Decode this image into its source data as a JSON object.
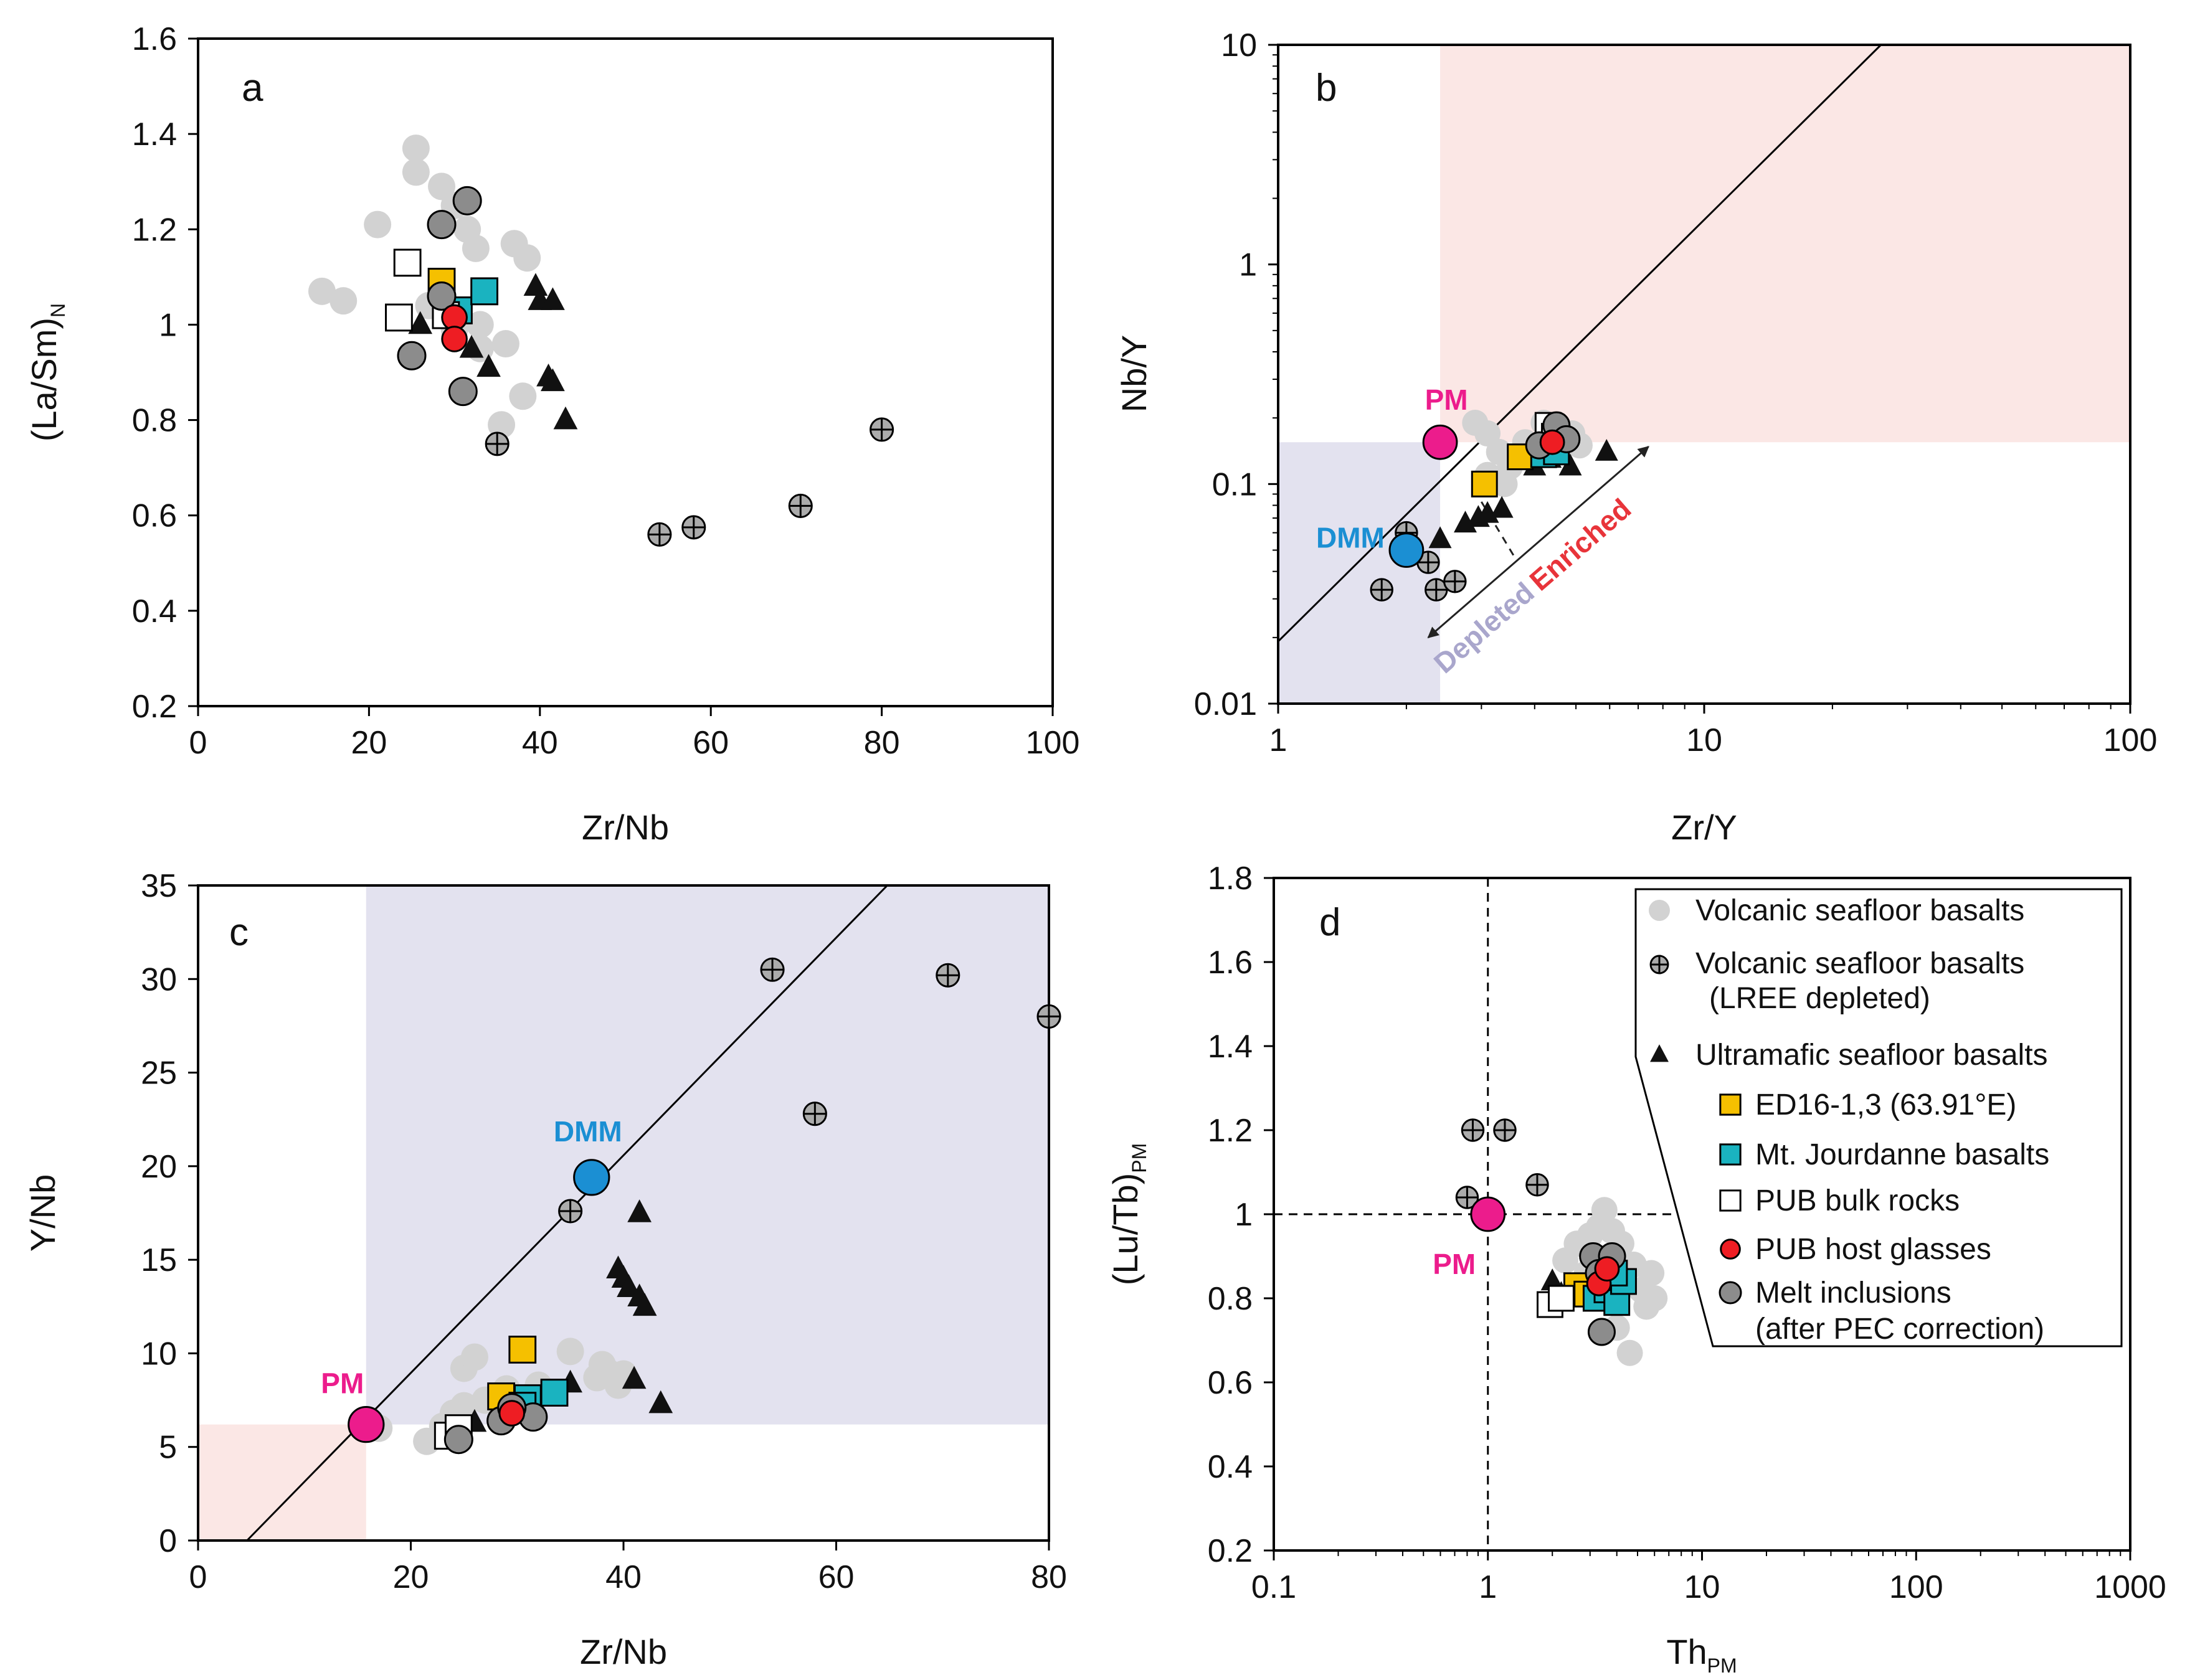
{
  "colors": {
    "gray": "#d2d2d2",
    "ed16": "#f5c000",
    "jourdanne": "#1ab3c0",
    "pub_bulk": "#ffffff",
    "host": "#ee1d23",
    "melt": "#8c8c8c",
    "pm": "#ec1c8c",
    "dmm": "#1b8fd3",
    "pink_region": "#fbe7e5",
    "blue_region": "#e3e2ef",
    "depleted": "#a9a6cc",
    "enriched": "#e8343a"
  },
  "legend": {
    "items": [
      {
        "key": "gray",
        "label": "Volcanic seafloor basalts"
      },
      {
        "key": "lree",
        "label": "Volcanic seafloor basalts",
        "label2": "(LREE depleted)"
      },
      {
        "key": "ultra",
        "label": "Ultramafic seafloor basalts"
      },
      {
        "key": "ed16",
        "label": "ED16-1,3 (63.91°E)"
      },
      {
        "key": "jourdanne",
        "label": "Mt. Jourdanne basalts"
      },
      {
        "key": "pub",
        "label": "PUB bulk rocks"
      },
      {
        "key": "host",
        "label": "PUB host glasses"
      },
      {
        "key": "melt",
        "label": "Melt inclusions",
        "label2": "(after PEC correction)"
      }
    ]
  },
  "chart_data": [
    {
      "panel": "a",
      "type": "scatter",
      "xscale": "linear",
      "yscale": "linear",
      "xlabel": "Zr/Nb",
      "ylabel": "(La/Sm)",
      "ylabel_sub": "N",
      "xlim": [
        0,
        100
      ],
      "ylim": [
        0.2,
        1.6
      ],
      "xticks": [
        0,
        20,
        40,
        60,
        80,
        100
      ],
      "xtick_labels": [
        "0",
        "20",
        "40",
        "60",
        "80",
        "100"
      ],
      "yticks": [
        0.2,
        0.4,
        0.6,
        0.8,
        1,
        1.2,
        1.4,
        1.6
      ],
      "ytick_labels": [
        "0.2",
        "0.4",
        "0.6",
        "0.8",
        "1",
        "1.2",
        "1.4",
        "1.6"
      ],
      "series": [
        {
          "key": "gray",
          "points": [
            [
              14.5,
              1.07
            ],
            [
              17,
              1.05
            ],
            [
              21,
              1.21
            ],
            [
              25.5,
              1.37
            ],
            [
              25.5,
              1.32
            ],
            [
              28.5,
              1.29
            ],
            [
              30,
              1.25
            ],
            [
              31.5,
              1.2
            ],
            [
              32.5,
              1.16
            ],
            [
              27,
              1.04
            ],
            [
              30,
              0.99
            ],
            [
              33,
              1.0
            ],
            [
              33,
              0.95
            ],
            [
              36,
              0.96
            ],
            [
              38.5,
              1.14
            ],
            [
              37,
              1.17
            ],
            [
              35.5,
              0.79
            ],
            [
              38,
              0.85
            ]
          ]
        },
        {
          "key": "lree",
          "points": [
            [
              35,
              0.75
            ],
            [
              54,
              0.56
            ],
            [
              58,
              0.575
            ],
            [
              70.5,
              0.62
            ],
            [
              80,
              0.78
            ]
          ]
        },
        {
          "key": "ultra",
          "points": [
            [
              26,
              1.0
            ],
            [
              32,
              0.95
            ],
            [
              34,
              0.91
            ],
            [
              39.5,
              1.08
            ],
            [
              40,
              1.05
            ],
            [
              41.5,
              1.05
            ],
            [
              41,
              0.89
            ],
            [
              41.5,
              0.88
            ],
            [
              43,
              0.8
            ]
          ]
        },
        {
          "key": "ed16",
          "points": [
            [
              28.5,
              1.09
            ]
          ]
        },
        {
          "key": "jourdanne",
          "points": [
            [
              30.5,
              1.03
            ],
            [
              33.5,
              1.07
            ]
          ]
        },
        {
          "key": "pub",
          "points": [
            [
              23.5,
              1.015
            ],
            [
              24.5,
              1.13
            ],
            [
              29,
              1.02
            ]
          ]
        },
        {
          "key": "melt",
          "points": [
            [
              28.5,
              1.21
            ],
            [
              31.5,
              1.26
            ],
            [
              28.5,
              1.06
            ],
            [
              31,
              0.86
            ],
            [
              25,
              0.935
            ]
          ]
        },
        {
          "key": "host",
          "points": [
            [
              30,
              1.015
            ],
            [
              30,
              0.97
            ]
          ]
        }
      ]
    },
    {
      "panel": "b",
      "type": "scatter",
      "xscale": "log",
      "yscale": "log",
      "xlabel": "Zr/Y",
      "ylabel": "Nb/Y",
      "xlim": [
        1,
        100
      ],
      "ylim": [
        0.01,
        10
      ],
      "xticks": [
        1,
        10,
        100
      ],
      "xtick_labels": [
        "1",
        "10",
        "100"
      ],
      "yticks": [
        0.01,
        0.1,
        1,
        10
      ],
      "ytick_labels": [
        "0.01",
        "0.1",
        "1",
        "10"
      ],
      "series": [
        {
          "key": "gray",
          "points": [
            [
              2.9,
              0.19
            ],
            [
              3.1,
              0.17
            ],
            [
              3.3,
              0.14
            ],
            [
              3.5,
              0.12
            ],
            [
              3.1,
              0.11
            ],
            [
              3.4,
              0.1
            ],
            [
              4.2,
              0.19
            ],
            [
              4.5,
              0.18
            ],
            [
              4.9,
              0.17
            ],
            [
              5.1,
              0.15
            ],
            [
              3.8,
              0.155
            ]
          ]
        },
        {
          "key": "lree",
          "points": [
            [
              1.75,
              0.033
            ],
            [
              2.0,
              0.06
            ],
            [
              2.25,
              0.044
            ],
            [
              2.35,
              0.033
            ],
            [
              2.6,
              0.036
            ]
          ]
        },
        {
          "key": "ultra",
          "points": [
            [
              2.4,
              0.056
            ],
            [
              2.75,
              0.066
            ],
            [
              2.95,
              0.07
            ],
            [
              3.1,
              0.073
            ],
            [
              3.35,
              0.077
            ],
            [
              4.0,
              0.12
            ],
            [
              4.35,
              0.13
            ],
            [
              4.85,
              0.12
            ],
            [
              5.9,
              0.14
            ]
          ]
        },
        {
          "key": "ed16",
          "points": [
            [
              3.7,
              0.133
            ],
            [
              3.05,
              0.1
            ]
          ]
        },
        {
          "key": "jourdanne",
          "points": [
            [
              4.2,
              0.136
            ],
            [
              4.5,
              0.14
            ]
          ]
        },
        {
          "key": "pub",
          "points": [
            [
              4.3,
              0.185
            ],
            [
              4.45,
              0.165
            ]
          ]
        },
        {
          "key": "melt",
          "points": [
            [
              4.5,
              0.185
            ],
            [
              4.75,
              0.16
            ],
            [
              4.1,
              0.15
            ]
          ]
        },
        {
          "key": "host",
          "points": [
            [
              4.4,
              0.155
            ]
          ]
        },
        {
          "key": "pm",
          "points": [
            [
              2.4,
              0.155
            ]
          ],
          "label": "PM"
        },
        {
          "key": "dmm",
          "points": [
            [
              2.0,
              0.05
            ]
          ],
          "label": "DMM"
        }
      ],
      "annotations": [
        "Depleted",
        "Enriched"
      ]
    },
    {
      "panel": "c",
      "type": "scatter",
      "xscale": "linear",
      "yscale": "linear",
      "xlabel": "Zr/Nb",
      "ylabel": "Y/Nb",
      "xlim": [
        0,
        80
      ],
      "ylim": [
        0,
        35
      ],
      "xticks": [
        0,
        20,
        40,
        60,
        80
      ],
      "xtick_labels": [
        "0",
        "20",
        "40",
        "60",
        "80"
      ],
      "yticks": [
        0,
        5,
        10,
        15,
        20,
        25,
        30,
        35
      ],
      "ytick_labels": [
        "0",
        "5",
        "10",
        "15",
        "20",
        "25",
        "30",
        "35"
      ],
      "series": [
        {
          "key": "gray",
          "points": [
            [
              21.5,
              5.3
            ],
            [
              23,
              6.1
            ],
            [
              24,
              6.8
            ],
            [
              25,
              7.2
            ],
            [
              27,
              7.5
            ],
            [
              25,
              9.2
            ],
            [
              26,
              9.8
            ],
            [
              29,
              8.1
            ],
            [
              32,
              8.3
            ],
            [
              35,
              10.1
            ],
            [
              37.5,
              8.7
            ],
            [
              38,
              9.4
            ],
            [
              38.5,
              9.0
            ],
            [
              39.5,
              8.3
            ],
            [
              40,
              8.9
            ],
            [
              17,
              6.0
            ]
          ]
        },
        {
          "key": "lree",
          "points": [
            [
              35,
              17.6
            ],
            [
              54,
              30.5
            ],
            [
              58,
              22.8
            ],
            [
              70.5,
              30.2
            ],
            [
              80,
              28.0
            ]
          ]
        },
        {
          "key": "ultra",
          "points": [
            [
              26,
              6.3
            ],
            [
              35,
              8.4
            ],
            [
              39.5,
              14.5
            ],
            [
              40,
              14
            ],
            [
              40.5,
              13.5
            ],
            [
              41.5,
              13
            ],
            [
              42,
              12.5
            ],
            [
              41.5,
              17.5
            ],
            [
              41,
              8.6
            ],
            [
              43.5,
              7.3
            ]
          ]
        },
        {
          "key": "ed16",
          "points": [
            [
              30.5,
              10.2
            ],
            [
              28.5,
              7.7
            ]
          ]
        },
        {
          "key": "jourdanne",
          "points": [
            [
              31,
              7.6
            ],
            [
              33.5,
              7.9
            ],
            [
              30.5,
              7.2
            ]
          ]
        },
        {
          "key": "pub",
          "points": [
            [
              23.5,
              5.6
            ],
            [
              24.5,
              6.0
            ]
          ]
        },
        {
          "key": "melt",
          "points": [
            [
              28.5,
              6.4
            ],
            [
              31.5,
              6.6
            ],
            [
              29.5,
              7.1
            ],
            [
              24.5,
              5.4
            ]
          ]
        },
        {
          "key": "host",
          "points": [
            [
              29.5,
              6.8
            ]
          ]
        },
        {
          "key": "pm",
          "points": [
            [
              15.8,
              6.2
            ]
          ],
          "label": "PM"
        },
        {
          "key": "dmm",
          "points": [
            [
              37,
              19.4
            ]
          ],
          "label": "DMM"
        }
      ]
    },
    {
      "panel": "d",
      "type": "scatter",
      "xscale": "log",
      "yscale": "linear",
      "xlabel": "Th",
      "xlabel_sub": "PM",
      "ylabel": "(Lu/Tb)",
      "ylabel_sub": "PM",
      "xlim": [
        0.1,
        1000
      ],
      "ylim": [
        0.2,
        1.8
      ],
      "xticks": [
        0.1,
        1,
        10,
        100,
        1000
      ],
      "xtick_labels": [
        "0.1",
        "1",
        "10",
        "100",
        "1000"
      ],
      "yticks": [
        0.2,
        0.4,
        0.6,
        0.8,
        1,
        1.2,
        1.4,
        1.6,
        1.8
      ],
      "ytick_labels": [
        "0.2",
        "0.4",
        "0.6",
        "0.8",
        "1",
        "1.2",
        "1.4",
        "1.6",
        "1.8"
      ],
      "series": [
        {
          "key": "gray",
          "points": [
            [
              2.3,
              0.89
            ],
            [
              2.6,
              0.93
            ],
            [
              3.0,
              0.95
            ],
            [
              3.3,
              0.97
            ],
            [
              3.5,
              1.01
            ],
            [
              3.8,
              0.96
            ],
            [
              4.2,
              0.93
            ],
            [
              4.8,
              0.88
            ],
            [
              5.2,
              0.82
            ],
            [
              5.8,
              0.86
            ],
            [
              6.0,
              0.8
            ],
            [
              5.5,
              0.78
            ],
            [
              4.6,
              0.67
            ],
            [
              4.0,
              0.73
            ],
            [
              2.9,
              0.86
            ],
            [
              3.6,
              0.84
            ]
          ]
        },
        {
          "key": "lree",
          "points": [
            [
              0.8,
              1.04
            ],
            [
              0.85,
              1.2
            ],
            [
              1.2,
              1.2
            ],
            [
              1.7,
              1.07
            ]
          ]
        },
        {
          "key": "ultra",
          "points": [
            [
              2.0,
              0.84
            ],
            [
              2.2,
              0.81
            ]
          ]
        },
        {
          "key": "ed16",
          "points": [
            [
              2.6,
              0.83
            ],
            [
              2.9,
              0.81
            ]
          ]
        },
        {
          "key": "jourdanne",
          "points": [
            [
              3.2,
              0.8
            ],
            [
              3.6,
              0.82
            ],
            [
              4.0,
              0.79
            ],
            [
              4.3,
              0.84
            ],
            [
              3.9,
              0.86
            ]
          ]
        },
        {
          "key": "pub",
          "points": [
            [
              1.95,
              0.785
            ],
            [
              2.2,
              0.8
            ]
          ]
        },
        {
          "key": "melt",
          "points": [
            [
              3.1,
              0.9
            ],
            [
              3.8,
              0.9
            ],
            [
              3.4,
              0.72
            ],
            [
              3.3,
              0.86
            ]
          ]
        },
        {
          "key": "host",
          "points": [
            [
              3.3,
              0.835
            ],
            [
              3.6,
              0.87
            ]
          ]
        },
        {
          "key": "pm",
          "points": [
            [
              1.0,
              1.0
            ]
          ],
          "label": "PM"
        }
      ]
    }
  ]
}
